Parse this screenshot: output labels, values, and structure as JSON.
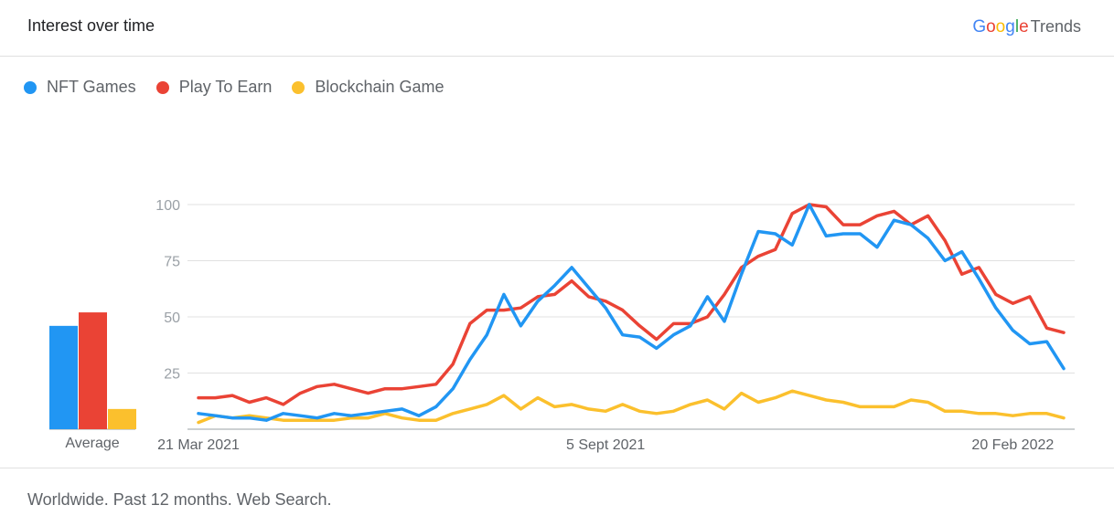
{
  "header": {
    "title": "Interest over time"
  },
  "brand": {
    "google": "Google",
    "trends": "Trends"
  },
  "footer": {
    "text": "Worldwide. Past 12 months. Web Search."
  },
  "chart_data": {
    "type": "line",
    "ylim": [
      0,
      100
    ],
    "yticks": [
      25,
      50,
      75,
      100
    ],
    "grid": true,
    "legend_position": "top-left",
    "x_tick_labels": [
      {
        "index": 0,
        "label": "21 Mar 2021"
      },
      {
        "index": 24,
        "label": "5 Sept 2021"
      },
      {
        "index": 48,
        "label": "20 Feb 2022"
      }
    ],
    "average": {
      "label": "Average",
      "values": [
        46,
        52,
        9
      ]
    },
    "series": [
      {
        "name": "NFT Games",
        "color": "#2196f3",
        "values": [
          7,
          6,
          5,
          5,
          4,
          7,
          6,
          5,
          7,
          6,
          7,
          8,
          9,
          6,
          10,
          18,
          31,
          42,
          60,
          46,
          57,
          64,
          72,
          63,
          54,
          42,
          41,
          36,
          42,
          46,
          59,
          48,
          69,
          88,
          87,
          82,
          100,
          86,
          87,
          87,
          81,
          93,
          91,
          85,
          75,
          79,
          67,
          54,
          44,
          38,
          39,
          27
        ]
      },
      {
        "name": "Play To Earn",
        "color": "#ea4335",
        "values": [
          14,
          14,
          15,
          12,
          14,
          11,
          16,
          19,
          20,
          18,
          16,
          18,
          18,
          19,
          20,
          29,
          47,
          53,
          53,
          54,
          59,
          60,
          66,
          59,
          57,
          53,
          46,
          40,
          47,
          47,
          50,
          60,
          72,
          77,
          80,
          96,
          100,
          99,
          91,
          91,
          95,
          97,
          91,
          95,
          84,
          69,
          72,
          60,
          56,
          59,
          45,
          43
        ]
      },
      {
        "name": "Blockchain Game",
        "color": "#fbc02d",
        "values": [
          3,
          6,
          5,
          6,
          5,
          4,
          4,
          4,
          4,
          5,
          5,
          7,
          5,
          4,
          4,
          7,
          9,
          11,
          15,
          9,
          14,
          10,
          11,
          9,
          8,
          11,
          8,
          7,
          8,
          11,
          13,
          9,
          16,
          12,
          14,
          17,
          15,
          13,
          12,
          10,
          10,
          10,
          13,
          12,
          8,
          8,
          7,
          7,
          6,
          7,
          7,
          5
        ]
      }
    ]
  }
}
